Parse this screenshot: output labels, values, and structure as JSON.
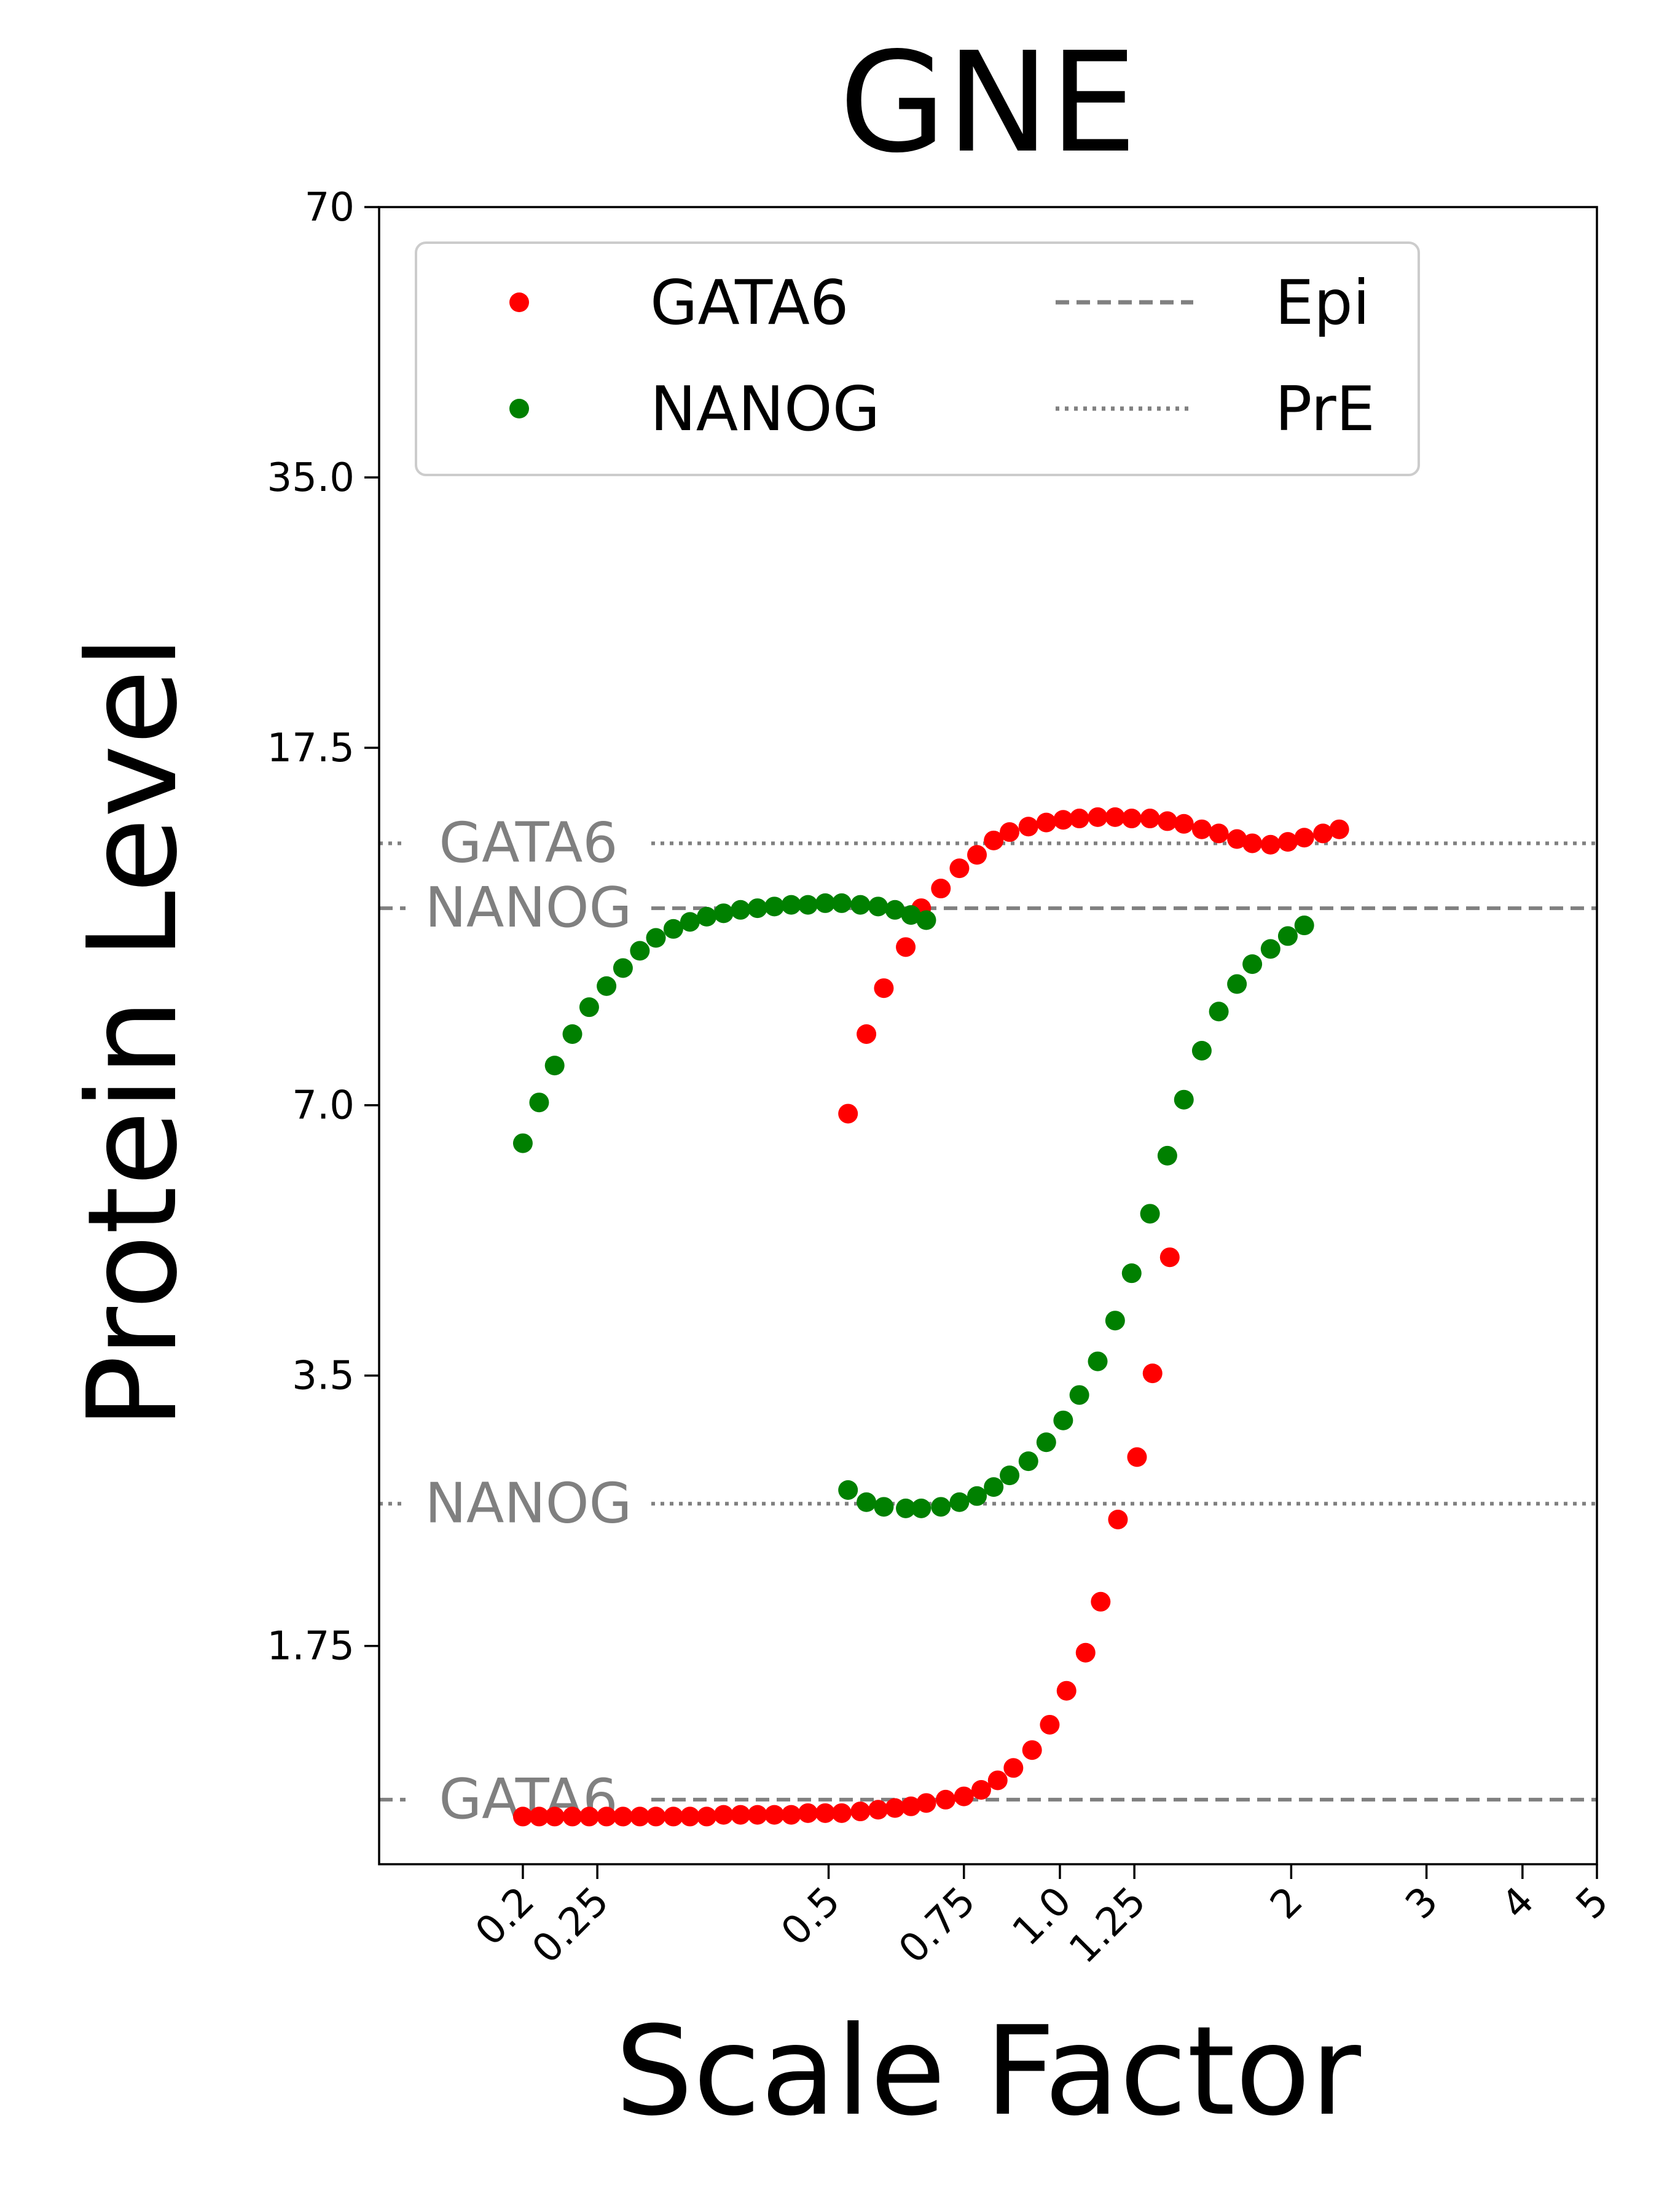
{
  "chart_data": {
    "type": "scatter",
    "title": "GNE",
    "xlabel": "Scale Factor",
    "ylabel": "Protein Level",
    "xscale": "log",
    "yscale": "log",
    "xlim": [
      0.13,
      5.0
    ],
    "ylim": [
      1.0,
      70.0
    ],
    "xticks": [
      {
        "value": 0.2,
        "label": "0.2"
      },
      {
        "value": 0.25,
        "label": "0.25"
      },
      {
        "value": 0.5,
        "label": "0.5"
      },
      {
        "value": 0.75,
        "label": "0.75"
      },
      {
        "value": 1.0,
        "label": "1.0"
      },
      {
        "value": 1.25,
        "label": "1.25"
      },
      {
        "value": 2,
        "label": "2"
      },
      {
        "value": 3,
        "label": "3"
      },
      {
        "value": 4,
        "label": "4"
      },
      {
        "value": 5,
        "label": "5"
      }
    ],
    "yticks": [
      {
        "value": 70,
        "label": "70"
      },
      {
        "value": 35.0,
        "label": "35.0"
      },
      {
        "value": 17.5,
        "label": "17.5"
      },
      {
        "value": 7.0,
        "label": "7.0"
      },
      {
        "value": 3.5,
        "label": "3.5"
      },
      {
        "value": 1.75,
        "label": "1.75"
      }
    ],
    "grid": false,
    "legend": {
      "placement": "top-left",
      "entries": [
        {
          "label": "GATA6",
          "kind": "point",
          "color": "#ff0000"
        },
        {
          "label": "NANOG",
          "kind": "point",
          "color": "#008000"
        },
        {
          "label": "Epi",
          "kind": "dashed",
          "color": "#808080"
        },
        {
          "label": "PrE",
          "kind": "dotted",
          "color": "#808080"
        }
      ]
    },
    "reference_lines": [
      {
        "label": "GATA6",
        "group": "PrE",
        "style": "dotted",
        "y": 13.7
      },
      {
        "label": "NANOG",
        "group": "Epi",
        "style": "dashed",
        "y": 11.6
      },
      {
        "label": "NANOG",
        "group": "PrE",
        "style": "dotted",
        "y": 2.52
      },
      {
        "label": "GATA6",
        "group": "Epi",
        "style": "dashed",
        "y": 1.18
      }
    ],
    "series": [
      {
        "name": "GATA6",
        "color": "#ff0000",
        "points": [
          {
            "x": 0.2,
            "y": 1.13
          },
          {
            "x": 0.21,
            "y": 1.13
          },
          {
            "x": 0.22,
            "y": 1.13
          },
          {
            "x": 0.232,
            "y": 1.13
          },
          {
            "x": 0.244,
            "y": 1.13
          },
          {
            "x": 0.257,
            "y": 1.13
          },
          {
            "x": 0.27,
            "y": 1.13
          },
          {
            "x": 0.284,
            "y": 1.13
          },
          {
            "x": 0.298,
            "y": 1.13
          },
          {
            "x": 0.314,
            "y": 1.13
          },
          {
            "x": 0.33,
            "y": 1.13
          },
          {
            "x": 0.347,
            "y": 1.13
          },
          {
            "x": 0.365,
            "y": 1.135
          },
          {
            "x": 0.384,
            "y": 1.135
          },
          {
            "x": 0.404,
            "y": 1.135
          },
          {
            "x": 0.425,
            "y": 1.135
          },
          {
            "x": 0.447,
            "y": 1.135
          },
          {
            "x": 0.47,
            "y": 1.14
          },
          {
            "x": 0.495,
            "y": 1.14
          },
          {
            "x": 0.52,
            "y": 1.14
          },
          {
            "x": 0.55,
            "y": 1.145
          },
          {
            "x": 0.58,
            "y": 1.15
          },
          {
            "x": 0.61,
            "y": 1.155
          },
          {
            "x": 0.64,
            "y": 1.16
          },
          {
            "x": 0.67,
            "y": 1.17
          },
          {
            "x": 0.71,
            "y": 1.18
          },
          {
            "x": 0.75,
            "y": 1.19
          },
          {
            "x": 0.79,
            "y": 1.21
          },
          {
            "x": 0.83,
            "y": 1.24
          },
          {
            "x": 0.87,
            "y": 1.28
          },
          {
            "x": 0.92,
            "y": 1.34
          },
          {
            "x": 0.97,
            "y": 1.43
          },
          {
            "x": 1.02,
            "y": 1.56
          },
          {
            "x": 1.08,
            "y": 1.72
          },
          {
            "x": 1.13,
            "y": 1.96
          },
          {
            "x": 1.19,
            "y": 2.42
          },
          {
            "x": 1.26,
            "y": 2.84
          },
          {
            "x": 1.32,
            "y": 3.52
          },
          {
            "x": 1.39,
            "y": 4.74
          },
          {
            "x": 0.53,
            "y": 6.85
          },
          {
            "x": 0.56,
            "y": 8.4
          },
          {
            "x": 0.59,
            "y": 9.45
          },
          {
            "x": 0.63,
            "y": 10.5
          },
          {
            "x": 0.66,
            "y": 11.6
          },
          {
            "x": 0.7,
            "y": 12.2
          },
          {
            "x": 0.74,
            "y": 12.85
          },
          {
            "x": 0.78,
            "y": 13.3
          },
          {
            "x": 0.82,
            "y": 13.8
          },
          {
            "x": 0.86,
            "y": 14.1
          },
          {
            "x": 0.91,
            "y": 14.3
          },
          {
            "x": 0.96,
            "y": 14.45
          },
          {
            "x": 1.01,
            "y": 14.55
          },
          {
            "x": 1.06,
            "y": 14.6
          },
          {
            "x": 1.12,
            "y": 14.65
          },
          {
            "x": 1.18,
            "y": 14.65
          },
          {
            "x": 1.24,
            "y": 14.6
          },
          {
            "x": 1.31,
            "y": 14.6
          },
          {
            "x": 1.38,
            "y": 14.5
          },
          {
            "x": 1.45,
            "y": 14.4
          },
          {
            "x": 1.53,
            "y": 14.2
          },
          {
            "x": 1.61,
            "y": 14.05
          },
          {
            "x": 1.7,
            "y": 13.85
          },
          {
            "x": 1.78,
            "y": 13.7
          },
          {
            "x": 1.88,
            "y": 13.65
          },
          {
            "x": 1.98,
            "y": 13.75
          },
          {
            "x": 2.08,
            "y": 13.9
          },
          {
            "x": 2.2,
            "y": 14.05
          },
          {
            "x": 2.31,
            "y": 14.2
          }
        ]
      },
      {
        "name": "NANOG",
        "color": "#008000",
        "points": [
          {
            "x": 0.2,
            "y": 6.35
          },
          {
            "x": 0.21,
            "y": 7.05
          },
          {
            "x": 0.22,
            "y": 7.75
          },
          {
            "x": 0.232,
            "y": 8.4
          },
          {
            "x": 0.244,
            "y": 9.0
          },
          {
            "x": 0.257,
            "y": 9.5
          },
          {
            "x": 0.27,
            "y": 9.95
          },
          {
            "x": 0.284,
            "y": 10.4
          },
          {
            "x": 0.298,
            "y": 10.75
          },
          {
            "x": 0.314,
            "y": 11.0
          },
          {
            "x": 0.33,
            "y": 11.2
          },
          {
            "x": 0.347,
            "y": 11.35
          },
          {
            "x": 0.365,
            "y": 11.45
          },
          {
            "x": 0.384,
            "y": 11.55
          },
          {
            "x": 0.404,
            "y": 11.6
          },
          {
            "x": 0.425,
            "y": 11.65
          },
          {
            "x": 0.447,
            "y": 11.7
          },
          {
            "x": 0.47,
            "y": 11.7
          },
          {
            "x": 0.495,
            "y": 11.75
          },
          {
            "x": 0.52,
            "y": 11.75
          },
          {
            "x": 0.55,
            "y": 11.7
          },
          {
            "x": 0.58,
            "y": 11.65
          },
          {
            "x": 0.61,
            "y": 11.55
          },
          {
            "x": 0.64,
            "y": 11.4
          },
          {
            "x": 0.67,
            "y": 11.25
          },
          {
            "x": 0.53,
            "y": 2.61
          },
          {
            "x": 0.56,
            "y": 2.53
          },
          {
            "x": 0.59,
            "y": 2.5
          },
          {
            "x": 0.63,
            "y": 2.49
          },
          {
            "x": 0.66,
            "y": 2.49
          },
          {
            "x": 0.7,
            "y": 2.5
          },
          {
            "x": 0.74,
            "y": 2.53
          },
          {
            "x": 0.78,
            "y": 2.57
          },
          {
            "x": 0.82,
            "y": 2.63
          },
          {
            "x": 0.86,
            "y": 2.71
          },
          {
            "x": 0.91,
            "y": 2.81
          },
          {
            "x": 0.96,
            "y": 2.95
          },
          {
            "x": 1.01,
            "y": 3.12
          },
          {
            "x": 1.06,
            "y": 3.33
          },
          {
            "x": 1.12,
            "y": 3.63
          },
          {
            "x": 1.18,
            "y": 4.03
          },
          {
            "x": 1.24,
            "y": 4.55
          },
          {
            "x": 1.31,
            "y": 5.3
          },
          {
            "x": 1.38,
            "y": 6.15
          },
          {
            "x": 1.45,
            "y": 7.1
          },
          {
            "x": 1.53,
            "y": 8.05
          },
          {
            "x": 1.61,
            "y": 8.9
          },
          {
            "x": 1.7,
            "y": 9.55
          },
          {
            "x": 1.78,
            "y": 10.05
          },
          {
            "x": 1.88,
            "y": 10.45
          },
          {
            "x": 1.98,
            "y": 10.8
          },
          {
            "x": 2.08,
            "y": 11.1
          }
        ]
      }
    ]
  }
}
